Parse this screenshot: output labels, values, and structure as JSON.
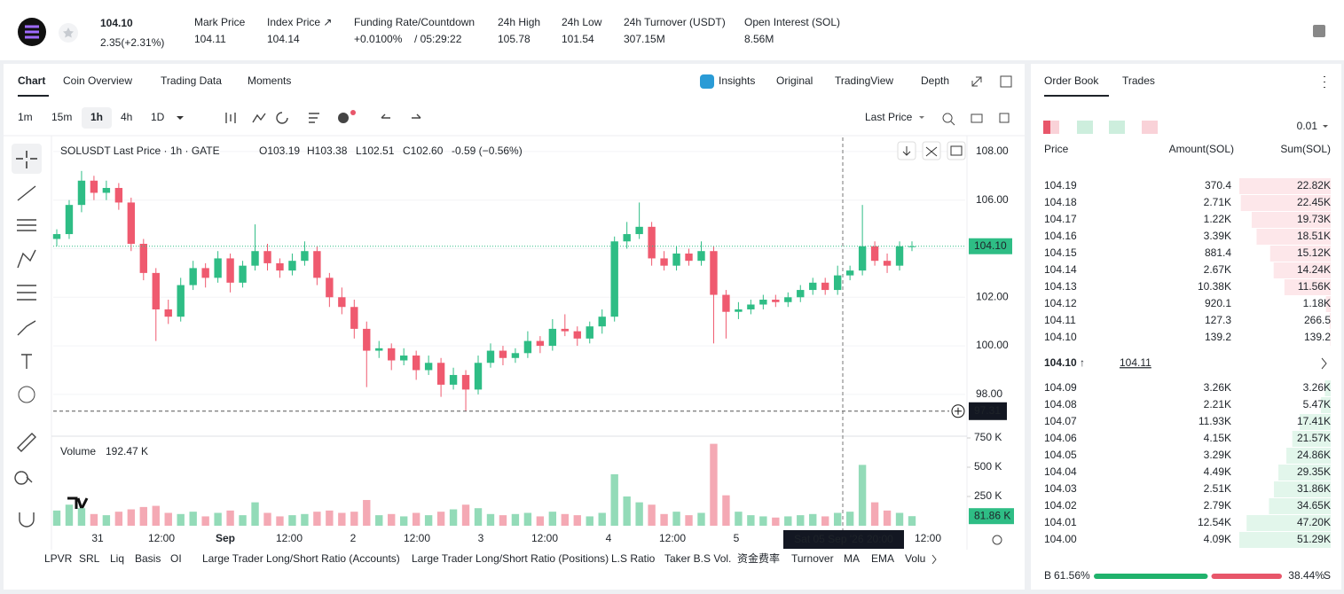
{
  "header": {
    "price": "104.10",
    "change": "2.35(+2.31%)",
    "stats": [
      {
        "label": "Mark Price",
        "value": "104.11"
      },
      {
        "label": "Index Price ↗",
        "value": "104.14"
      },
      {
        "label": "24h High",
        "value": "105.78"
      },
      {
        "label": "24h Low",
        "value": "101.54"
      },
      {
        "label": "24h Turnover (USDT)",
        "value": "307.15M"
      },
      {
        "label": "Open Interest (SOL)",
        "value": "8.56M"
      }
    ],
    "funding": {
      "label": "Funding Rate/Countdown",
      "rate": "+0.0100%",
      "countdown": "/ 05:29:22"
    }
  },
  "tabs": [
    "Chart",
    "Coin Overview",
    "Trading Data",
    "Moments"
  ],
  "views": [
    "Insights",
    "Original",
    "TradingView",
    "Depth"
  ],
  "intervals": [
    "1m",
    "15m",
    "1h",
    "4h",
    "1D"
  ],
  "price_source": "Last Price",
  "chart": {
    "symbol": "SOLUSDT Last Price · 1h · GATE",
    "ohlc": [
      "O103.19",
      "H103.38",
      "L102.51",
      "C102.60",
      "-0.59 (−0.56%)"
    ],
    "ylim": [
      96.28,
      108.58
    ],
    "yticks": [
      {
        "value": 108,
        "label": "108.00"
      },
      {
        "value": 106,
        "label": "106.00"
      },
      {
        "value": 104,
        "label": "104.00"
      },
      {
        "value": 102,
        "label": "102.00"
      },
      {
        "value": 100,
        "label": "100.00"
      },
      {
        "value": 98,
        "label": "98.00"
      }
    ],
    "last_price": {
      "value": 104.1,
      "label": "104.10"
    },
    "crosshair": {
      "value": 97.31,
      "label": "97.31",
      "time": "Sat 05 Sep '26 20:00"
    },
    "time_labels": [
      "31",
      "12:00",
      "Sep",
      "12:00",
      "2",
      "12:00",
      "3",
      "12:00",
      "4",
      "12:00",
      "5",
      null,
      null,
      "12:00"
    ],
    "candles": [
      [
        104.4,
        104.8,
        104.1,
        104.6
      ],
      [
        104.6,
        106.0,
        104.4,
        105.8
      ],
      [
        105.8,
        107.2,
        105.5,
        106.8
      ],
      [
        106.8,
        107.0,
        106.0,
        106.3
      ],
      [
        106.3,
        106.8,
        106.0,
        106.5
      ],
      [
        106.5,
        106.7,
        105.6,
        105.9
      ],
      [
        105.9,
        106.1,
        103.9,
        104.2
      ],
      [
        104.2,
        104.4,
        102.7,
        103.0
      ],
      [
        103.0,
        103.2,
        100.2,
        101.5
      ],
      [
        101.5,
        101.9,
        100.9,
        101.2
      ],
      [
        101.2,
        102.8,
        101.0,
        102.5
      ],
      [
        102.5,
        103.5,
        102.3,
        103.2
      ],
      [
        103.2,
        103.4,
        102.4,
        102.8
      ],
      [
        102.8,
        103.9,
        102.6,
        103.6
      ],
      [
        103.6,
        103.8,
        102.2,
        102.6
      ],
      [
        102.6,
        103.5,
        102.4,
        103.3
      ],
      [
        103.3,
        105.0,
        103.1,
        103.9
      ],
      [
        103.9,
        104.2,
        103.1,
        103.4
      ],
      [
        103.4,
        103.6,
        102.8,
        103.1
      ],
      [
        103.1,
        103.8,
        102.9,
        103.5
      ],
      [
        103.5,
        104.3,
        103.3,
        103.9
      ],
      [
        103.9,
        104.1,
        102.5,
        102.8
      ],
      [
        102.8,
        103.0,
        101.6,
        102.0
      ],
      [
        102.0,
        102.4,
        101.3,
        101.6
      ],
      [
        101.6,
        101.9,
        100.3,
        100.7
      ],
      [
        100.7,
        101.0,
        98.3,
        99.8
      ],
      [
        99.8,
        100.2,
        99.5,
        99.9
      ],
      [
        99.9,
        100.1,
        99.0,
        99.4
      ],
      [
        99.4,
        99.9,
        99.2,
        99.6
      ],
      [
        99.6,
        99.8,
        98.6,
        99.0
      ],
      [
        99.0,
        99.6,
        98.8,
        99.3
      ],
      [
        99.3,
        99.5,
        97.9,
        98.4
      ],
      [
        98.4,
        99.1,
        98.2,
        98.8
      ],
      [
        98.8,
        99.0,
        97.3,
        98.2
      ],
      [
        98.2,
        99.6,
        98.0,
        99.3
      ],
      [
        99.3,
        100.1,
        99.1,
        99.8
      ],
      [
        99.8,
        100.0,
        99.2,
        99.5
      ],
      [
        99.5,
        99.9,
        99.3,
        99.7
      ],
      [
        99.7,
        100.6,
        99.5,
        100.2
      ],
      [
        100.2,
        100.4,
        99.7,
        100.0
      ],
      [
        100.0,
        101.1,
        99.8,
        100.7
      ],
      [
        100.7,
        101.3,
        100.4,
        100.6
      ],
      [
        100.6,
        100.8,
        100.0,
        100.3
      ],
      [
        100.3,
        101.0,
        100.1,
        100.8
      ],
      [
        100.8,
        101.5,
        100.5,
        101.2
      ],
      [
        101.2,
        104.5,
        101.0,
        104.3
      ],
      [
        104.3,
        105.1,
        104.0,
        104.6
      ],
      [
        104.6,
        105.9,
        104.4,
        104.9
      ],
      [
        104.9,
        105.1,
        103.3,
        103.6
      ],
      [
        103.6,
        103.9,
        103.1,
        103.3
      ],
      [
        103.3,
        104.1,
        103.1,
        103.8
      ],
      [
        103.8,
        104.0,
        103.3,
        103.5
      ],
      [
        103.5,
        104.3,
        103.3,
        103.9
      ],
      [
        103.9,
        104.1,
        100.1,
        102.1
      ],
      [
        102.1,
        102.3,
        100.3,
        101.4
      ],
      [
        101.4,
        101.8,
        101.1,
        101.5
      ],
      [
        101.5,
        101.9,
        101.3,
        101.7
      ],
      [
        101.7,
        102.1,
        101.5,
        101.9
      ],
      [
        101.9,
        102.1,
        101.6,
        101.8
      ],
      [
        101.8,
        102.2,
        101.6,
        102.0
      ],
      [
        102.0,
        102.5,
        101.8,
        102.3
      ],
      [
        102.3,
        102.8,
        102.1,
        102.6
      ],
      [
        102.6,
        102.8,
        102.1,
        102.3
      ],
      [
        102.3,
        103.3,
        102.1,
        102.9
      ],
      [
        102.9,
        103.3,
        102.7,
        103.1
      ],
      [
        103.1,
        105.8,
        102.9,
        104.1
      ],
      [
        104.1,
        104.3,
        103.3,
        103.5
      ],
      [
        103.5,
        103.8,
        103.0,
        103.3
      ],
      [
        103.3,
        104.3,
        103.1,
        104.1
      ],
      [
        104.1,
        104.3,
        103.9,
        104.1
      ]
    ],
    "volume_title": "Volume",
    "volume_value": "192.47 K",
    "vlim": [
      0,
      750
    ],
    "vticks": [
      {
        "value": 750,
        "label": "750 K"
      },
      {
        "value": 500,
        "label": "500 K"
      },
      {
        "value": 250,
        "label": "250 K"
      }
    ],
    "volume_last": {
      "value": 81.86,
      "label": "81.86 K"
    },
    "volumes": [
      130,
      180,
      150,
      100,
      90,
      120,
      140,
      160,
      170,
      110,
      100,
      120,
      80,
      110,
      130,
      90,
      200,
      110,
      80,
      90,
      100,
      120,
      130,
      110,
      120,
      220,
      90,
      100,
      80,
      110,
      90,
      120,
      140,
      180,
      150,
      100,
      90,
      100,
      110,
      80,
      120,
      100,
      90,
      80,
      110,
      440,
      250,
      200,
      180,
      100,
      120,
      90,
      110,
      700,
      260,
      120,
      90,
      80,
      70,
      80,
      90,
      100,
      80,
      110,
      120,
      520,
      200,
      130,
      110,
      81.86
    ]
  },
  "indicators": [
    "LPVR",
    "SRL",
    "Liq",
    "Basis",
    "OI",
    "Large Trader Long/Short Ratio (Accounts)",
    "Large Trader Long/Short Ratio (Positions)",
    "L.S Ratio",
    "Taker B.S Vol.",
    "资金费率",
    "Turnover",
    "MA",
    "EMA",
    "Volu"
  ],
  "order_book": {
    "tabs": [
      "Order Book",
      "Trades"
    ],
    "precision": "0.01",
    "columns": [
      "Price",
      "Amount(SOL)",
      "Sum(SOL)"
    ],
    "asks": [
      {
        "price": "104.19",
        "amount": "370.4",
        "sum": {
          "value": 22820,
          "label": "22.82K"
        }
      },
      {
        "price": "104.18",
        "amount": "2.71K",
        "sum": {
          "value": 22450,
          "label": "22.45K"
        }
      },
      {
        "price": "104.17",
        "amount": "1.22K",
        "sum": {
          "value": 19730,
          "label": "19.73K"
        }
      },
      {
        "price": "104.16",
        "amount": "3.39K",
        "sum": {
          "value": 18510,
          "label": "18.51K"
        }
      },
      {
        "price": "104.15",
        "amount": "881.4",
        "sum": {
          "value": 15120,
          "label": "15.12K"
        }
      },
      {
        "price": "104.14",
        "amount": "2.67K",
        "sum": {
          "value": 14240,
          "label": "14.24K"
        }
      },
      {
        "price": "104.13",
        "amount": "10.38K",
        "sum": {
          "value": 11560,
          "label": "11.56K"
        }
      },
      {
        "price": "104.12",
        "amount": "920.1",
        "sum": {
          "value": 1180,
          "label": "1.18K"
        }
      },
      {
        "price": "104.11",
        "amount": "127.3",
        "sum": {
          "value": 266.5,
          "label": "266.5"
        }
      },
      {
        "price": "104.10",
        "amount": "139.2",
        "sum": {
          "value": 139.2,
          "label": "139.2"
        }
      }
    ],
    "mid": {
      "price": "104.10 ↑",
      "mark": "104.11"
    },
    "bids": [
      {
        "price": "104.09",
        "amount": "3.26K",
        "sum": {
          "value": 3260,
          "label": "3.26K"
        }
      },
      {
        "price": "104.08",
        "amount": "2.21K",
        "sum": {
          "value": 5470,
          "label": "5.47K"
        }
      },
      {
        "price": "104.07",
        "amount": "11.93K",
        "sum": {
          "value": 17410,
          "label": "17.41K"
        }
      },
      {
        "price": "104.06",
        "amount": "4.15K",
        "sum": {
          "value": 21570,
          "label": "21.57K"
        }
      },
      {
        "price": "104.05",
        "amount": "3.29K",
        "sum": {
          "value": 24860,
          "label": "24.86K"
        }
      },
      {
        "price": "104.04",
        "amount": "4.49K",
        "sum": {
          "value": 29350,
          "label": "29.35K"
        }
      },
      {
        "price": "104.03",
        "amount": "2.51K",
        "sum": {
          "value": 31860,
          "label": "31.86K"
        }
      },
      {
        "price": "104.02",
        "amount": "2.79K",
        "sum": {
          "value": 34650,
          "label": "34.65K"
        }
      },
      {
        "price": "104.01",
        "amount": "12.54K",
        "sum": {
          "value": 47200,
          "label": "47.20K"
        }
      },
      {
        "price": "104.00",
        "amount": "4.09K",
        "sum": {
          "value": 51290,
          "label": "51.29K"
        }
      }
    ],
    "ratio": {
      "buy_letter": "B",
      "sell_letter": "S",
      "buy": {
        "value": 61.56,
        "label": "61.56%"
      },
      "sell": {
        "value": 38.44,
        "label": "38.44%"
      }
    }
  }
}
